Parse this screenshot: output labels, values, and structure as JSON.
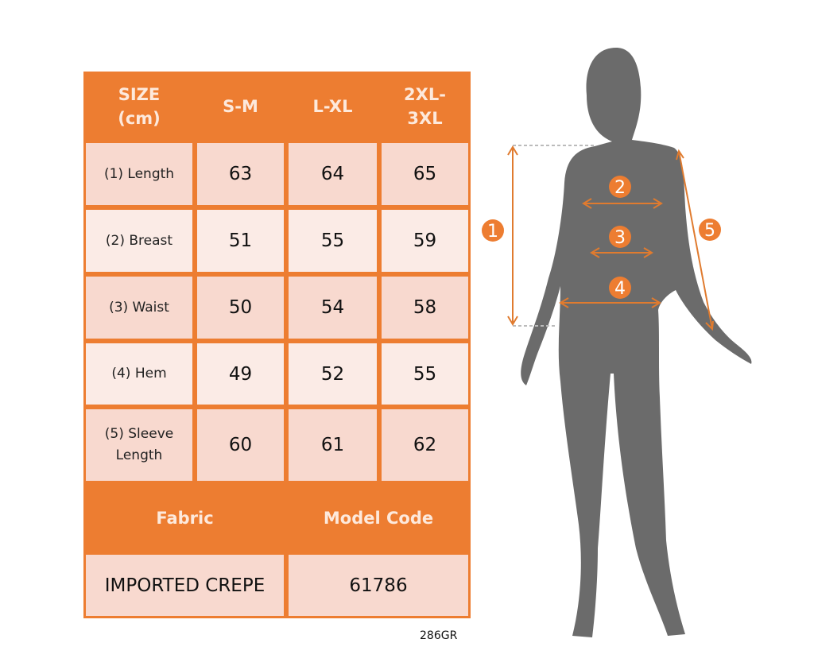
{
  "header": [
    "SIZE\n(cm)",
    "S-M",
    "L-XL",
    "2XL-\n3XL"
  ],
  "rows": [
    {
      "label": "(1) Length",
      "values": [
        "63",
        "64",
        "65"
      ]
    },
    {
      "label": "(2) Breast",
      "values": [
        "51",
        "55",
        "59"
      ]
    },
    {
      "label": "(3) Waist",
      "values": [
        "50",
        "54",
        "58"
      ]
    },
    {
      "label": "(4) Hem",
      "values": [
        "49",
        "52",
        "55"
      ]
    },
    {
      "label": "(5) Sleeve\nLength",
      "values": [
        "60",
        "61",
        "62"
      ]
    }
  ],
  "info_header": {
    "fabric": "Fabric",
    "model_code": "Model Code"
  },
  "info": {
    "fabric": "IMPORTED CREPE",
    "model_code": "61786"
  },
  "product_code": "286GR",
  "markers": [
    "1",
    "2",
    "3",
    "4",
    "5"
  ],
  "colors": {
    "accent": "#ed7d31",
    "silhouette": "#6b6b6b",
    "row_a": "#f8d9cf",
    "row_b": "#fbebe6"
  }
}
